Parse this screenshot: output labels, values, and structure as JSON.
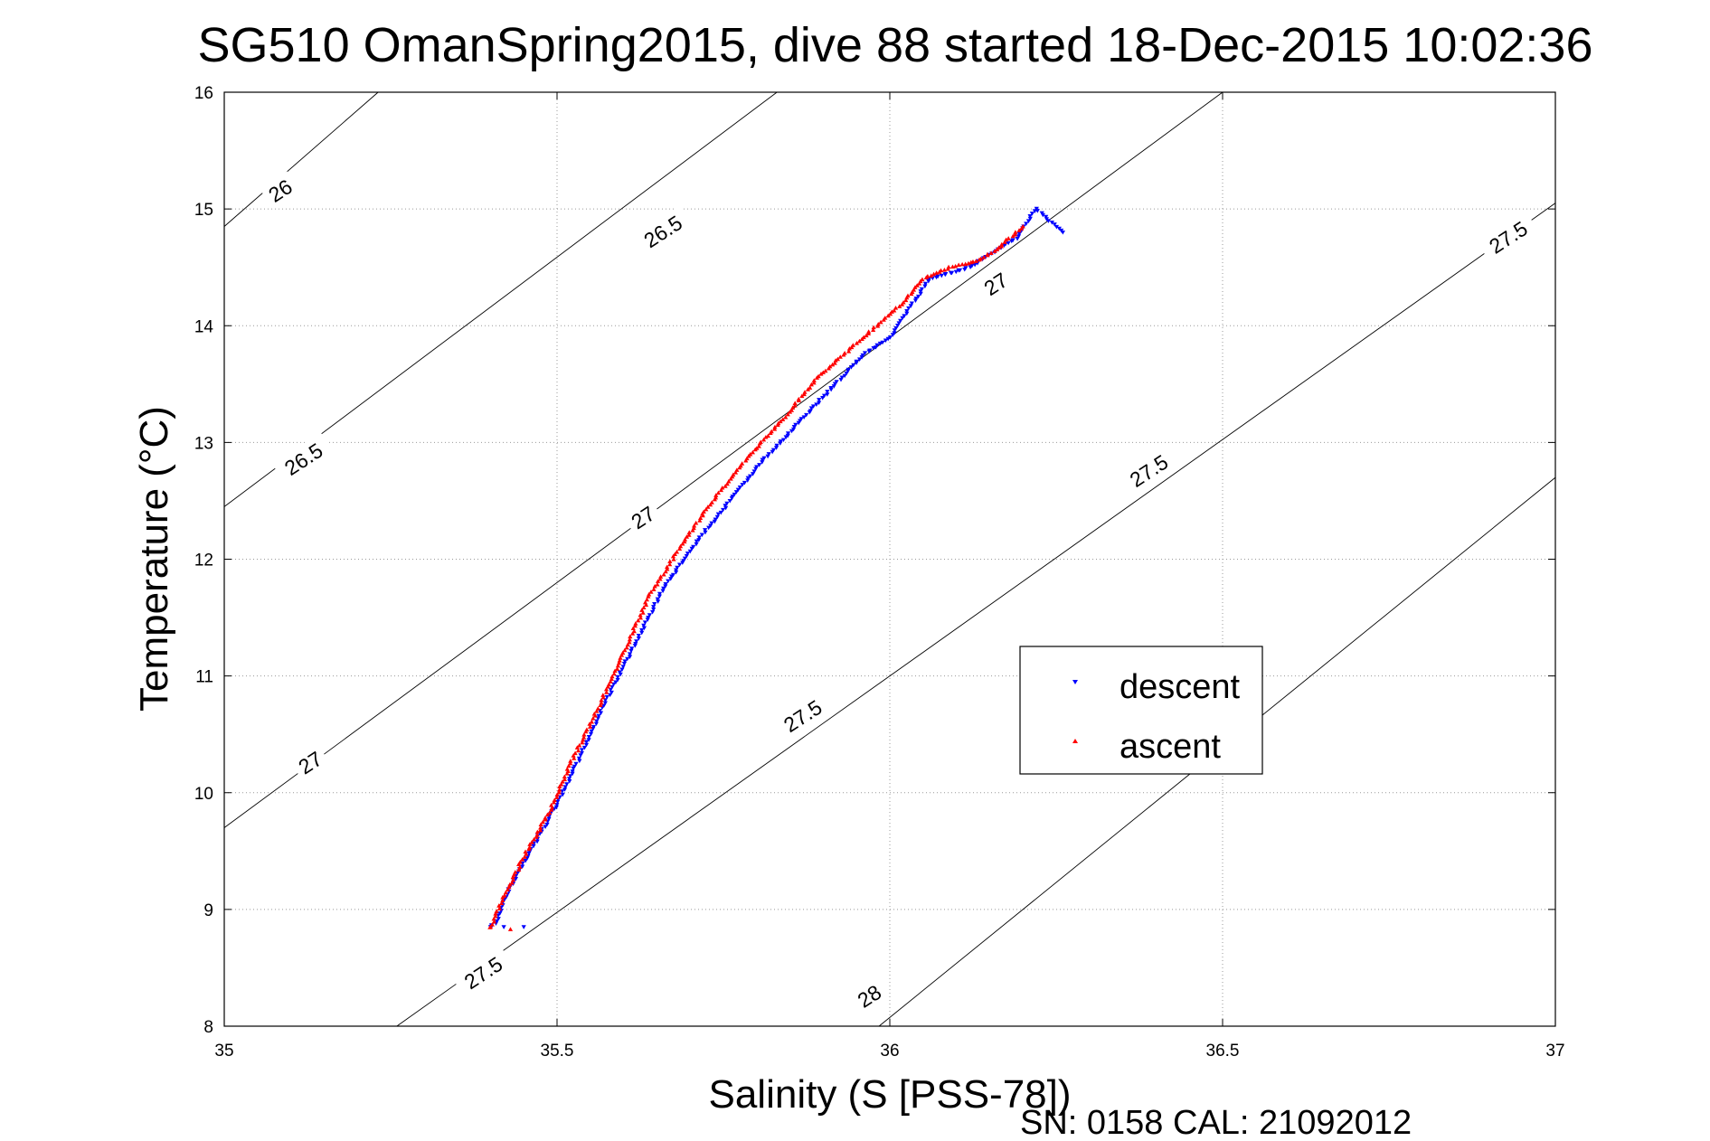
{
  "chart_data": {
    "type": "scatter",
    "title": "SG510 OmanSpring2015, dive 88 started 18-Dec-2015 10:02:36",
    "xlabel": "Salinity (S [PSS-78])",
    "ylabel": "Temperature (°C)",
    "footnote": "SN: 0158  CAL: 21092012",
    "xlim": [
      35,
      37
    ],
    "ylim": [
      8,
      16
    ],
    "xticks": [
      35,
      35.5,
      36,
      36.5,
      37
    ],
    "xtick_labels": [
      "35",
      "35.5",
      "36",
      "36.5",
      "37"
    ],
    "yticks": [
      8,
      9,
      10,
      11,
      12,
      13,
      14,
      15,
      16
    ],
    "ytick_labels": [
      "8",
      "9",
      "10",
      "11",
      "12",
      "13",
      "14",
      "15",
      "16"
    ],
    "grid": true,
    "legend": "center-right",
    "contours": {
      "lines": [
        {
          "t_at_35": 17.85,
          "t_at_37": 27.8,
          "slope": 4.975
        },
        {
          "t_at_35": 14.85,
          "t_at_37": 24.8,
          "slope": 4.975
        },
        {
          "t_at_35": 12.45,
          "t_at_37": 21.0,
          "slope": 4.275
        },
        {
          "t_at_35": 9.7,
          "t_at_37": 18.1,
          "slope": 4.2
        },
        {
          "t_at_35": 6.95,
          "t_at_37": 15.05,
          "slope": 4.05
        },
        {
          "t_at_35": 3.45,
          "t_at_37": 12.7,
          "slope": 4.625
        }
      ],
      "labels": [
        {
          "text": "26",
          "s": 35.085,
          "t": 15.15
        },
        {
          "text": "26.5",
          "s": 35.66,
          "t": 14.8
        },
        {
          "text": "26.5",
          "s": 35.12,
          "t": 12.85
        },
        {
          "text": "27",
          "s": 35.63,
          "t": 12.35
        },
        {
          "text": "27",
          "s": 35.13,
          "t": 10.25
        },
        {
          "text": "27",
          "s": 36.16,
          "t": 14.35
        },
        {
          "text": "27.5",
          "s": 36.93,
          "t": 14.75
        },
        {
          "text": "27.5",
          "s": 36.39,
          "t": 12.75
        },
        {
          "text": "27.5",
          "s": 35.87,
          "t": 10.65
        },
        {
          "text": "27.5",
          "s": 35.39,
          "t": 8.45
        },
        {
          "text": "28",
          "s": 35.97,
          "t": 8.25
        }
      ]
    },
    "series": [
      {
        "name": "descent",
        "color": "#0000ff",
        "marker": "triangle-down",
        "anchors": [
          [
            35.4,
            8.85
          ],
          [
            35.41,
            8.9
          ],
          [
            35.43,
            9.2
          ],
          [
            35.46,
            9.5
          ],
          [
            35.5,
            9.9
          ],
          [
            35.53,
            10.25
          ],
          [
            35.57,
            10.75
          ],
          [
            35.62,
            11.3
          ],
          [
            35.66,
            11.75
          ],
          [
            35.71,
            12.15
          ],
          [
            35.76,
            12.5
          ],
          [
            35.81,
            12.85
          ],
          [
            35.86,
            13.15
          ],
          [
            35.91,
            13.45
          ],
          [
            35.96,
            13.75
          ],
          [
            36.0,
            13.9
          ],
          [
            36.03,
            14.15
          ],
          [
            36.06,
            14.4
          ],
          [
            36.12,
            14.5
          ],
          [
            36.19,
            14.75
          ],
          [
            36.22,
            15.0
          ],
          [
            36.26,
            14.8
          ]
        ],
        "return_leg": [
          [
            35.4,
            8.85
          ],
          [
            35.42,
            8.85
          ],
          [
            35.45,
            8.85
          ]
        ]
      },
      {
        "name": "ascent",
        "color": "#ff0000",
        "marker": "triangle-up",
        "anchors": [
          [
            35.4,
            8.85
          ],
          [
            35.42,
            9.1
          ],
          [
            35.45,
            9.45
          ],
          [
            35.49,
            9.85
          ],
          [
            35.52,
            10.25
          ],
          [
            35.56,
            10.7
          ],
          [
            35.6,
            11.2
          ],
          [
            35.64,
            11.7
          ],
          [
            35.69,
            12.15
          ],
          [
            35.74,
            12.55
          ],
          [
            35.79,
            12.9
          ],
          [
            35.84,
            13.2
          ],
          [
            35.89,
            13.55
          ],
          [
            35.94,
            13.8
          ],
          [
            35.98,
            14.0
          ],
          [
            36.02,
            14.2
          ],
          [
            36.05,
            14.4
          ],
          [
            36.09,
            14.5
          ],
          [
            36.13,
            14.55
          ],
          [
            36.16,
            14.65
          ],
          [
            36.18,
            14.75
          ],
          [
            36.2,
            14.85
          ]
        ],
        "return_leg": [
          [
            35.4,
            8.85
          ],
          [
            35.43,
            8.83
          ]
        ]
      }
    ]
  }
}
